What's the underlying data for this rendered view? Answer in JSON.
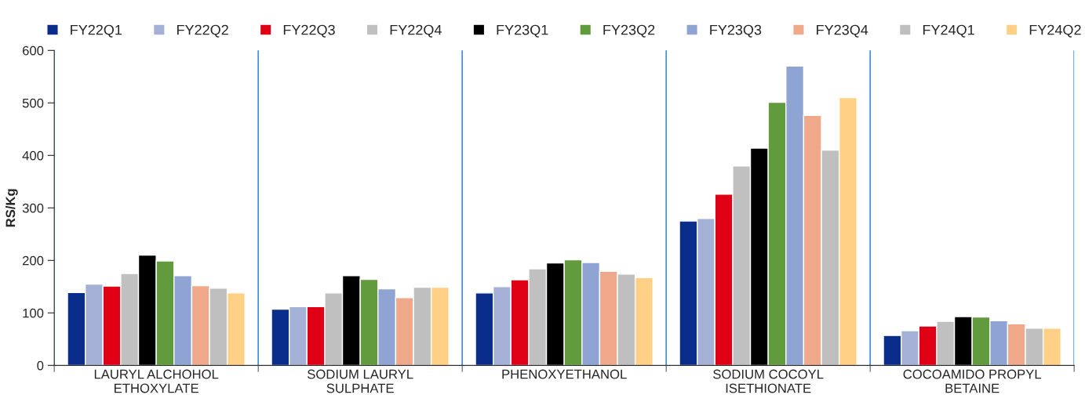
{
  "chart_data": {
    "type": "bar",
    "ylabel": "RS/Kg",
    "categories": [
      "LAURYL ALCHOHOL\nETHOXYLATE",
      "SODIUM LAURYL\nSULPHATE",
      "PHENOXYETHANOL",
      "SODIUM COCOYL\nISETHIONATE",
      "COCOAMIDO PROPYL\nBETAINE"
    ],
    "series": [
      {
        "name": "FY22Q1",
        "color": "#0a2d8c",
        "values": [
          139,
          107,
          138,
          275,
          57
        ]
      },
      {
        "name": "FY22Q2",
        "color": "#a4b0d6",
        "values": [
          155,
          112,
          150,
          280,
          66
        ]
      },
      {
        "name": "FY22Q3",
        "color": "#e00016",
        "values": [
          151,
          112,
          163,
          326,
          75
        ]
      },
      {
        "name": "FY22Q4",
        "color": "#c0c0c0",
        "values": [
          175,
          138,
          184,
          380,
          84
        ]
      },
      {
        "name": "FY23Q1",
        "color": "#000000",
        "values": [
          210,
          171,
          195,
          414,
          93
        ]
      },
      {
        "name": "FY23Q2",
        "color": "#629a3e",
        "values": [
          199,
          164,
          201,
          501,
          92
        ]
      },
      {
        "name": "FY23Q3",
        "color": "#90a4d4",
        "values": [
          171,
          146,
          196,
          570,
          85
        ]
      },
      {
        "name": "FY23Q4",
        "color": "#f0a88a",
        "values": [
          152,
          129,
          179,
          476,
          79
        ]
      },
      {
        "name": "FY24Q1",
        "color": "#bfbfbf",
        "values": [
          147,
          149,
          174,
          410,
          71
        ]
      },
      {
        "name": "FY24Q2",
        "color": "#ffd086",
        "values": [
          138,
          149,
          167,
          510,
          71
        ]
      }
    ],
    "ylim": [
      0,
      600
    ],
    "yticks": [
      0,
      100,
      200,
      300,
      400,
      500,
      600
    ],
    "grid": "x",
    "legend": "top"
  }
}
